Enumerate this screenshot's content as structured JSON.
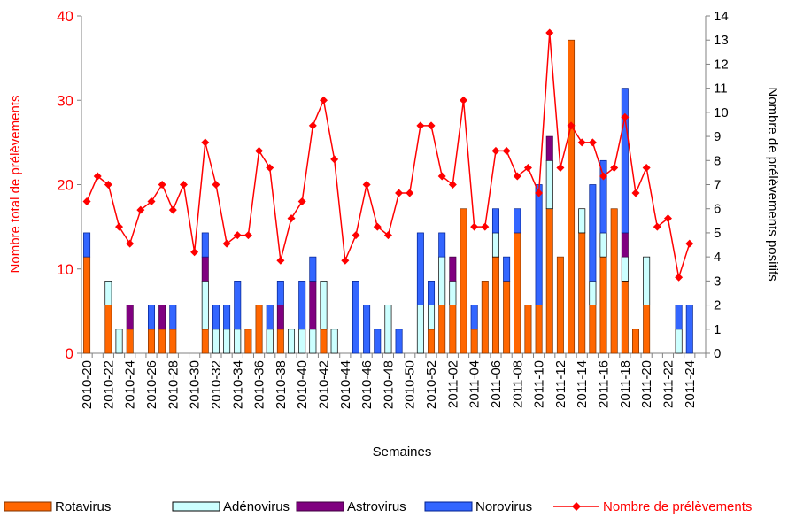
{
  "chart_data": {
    "type": "bar-line",
    "categories": [
      "2010-20",
      null,
      "2010-22",
      null,
      "2010-24",
      null,
      "2010-26",
      null,
      "2010-28",
      null,
      "2010-30",
      null,
      "2010-32",
      null,
      "2010-34",
      null,
      "2010-36",
      null,
      "2010-38",
      null,
      "2010-40",
      null,
      "2010-42",
      null,
      "2010-44",
      null,
      "2010-46",
      null,
      "2010-48",
      null,
      "2010-50",
      null,
      "2010-52",
      null,
      "2011-02",
      null,
      "2011-04",
      null,
      "2011-06",
      null,
      "2011-08",
      null,
      "2011-10",
      null,
      "2011-12",
      null,
      "2011-14",
      null,
      "2011-16",
      null,
      "2011-18",
      null,
      "2011-20",
      null,
      "2011-22",
      null,
      "2011-24",
      null
    ],
    "series": [
      {
        "name": "Rotavirus",
        "color": "#ff6600",
        "axis": "y2",
        "values": [
          4,
          0,
          2,
          0,
          1,
          0,
          1,
          1,
          1,
          0,
          0,
          1,
          0,
          0,
          0,
          1,
          2,
          0,
          1,
          0,
          0,
          0,
          1,
          0,
          0,
          0,
          0,
          0,
          0,
          0,
          0,
          0,
          1,
          2,
          2,
          6,
          1,
          3,
          4,
          3,
          5,
          2,
          2,
          6,
          4,
          13,
          5,
          2,
          4,
          6,
          3,
          1,
          2,
          0,
          0,
          0,
          0,
          0
        ]
      },
      {
        "name": "Adénovirus",
        "color": "#ccffff",
        "axis": "y2",
        "values": [
          0,
          0,
          1,
          1,
          0,
          0,
          0,
          0,
          0,
          0,
          0,
          2,
          1,
          1,
          1,
          0,
          0,
          1,
          0,
          1,
          1,
          1,
          2,
          1,
          0,
          0,
          0,
          0,
          2,
          0,
          0,
          2,
          1,
          2,
          1,
          0,
          0,
          0,
          1,
          0,
          0,
          0,
          0,
          2,
          0,
          0,
          1,
          1,
          1,
          0,
          1,
          0,
          2,
          0,
          0,
          1,
          0,
          0
        ]
      },
      {
        "name": "Astrovirus",
        "color": "#800080",
        "axis": "y2",
        "values": [
          0,
          0,
          0,
          0,
          1,
          0,
          0,
          1,
          0,
          0,
          0,
          1,
          0,
          0,
          0,
          0,
          0,
          0,
          1,
          0,
          0,
          2,
          0,
          0,
          0,
          0,
          0,
          0,
          0,
          0,
          0,
          0,
          0,
          0,
          1,
          0,
          0,
          0,
          0,
          0,
          0,
          0,
          0,
          1,
          0,
          0,
          0,
          0,
          0,
          0,
          1,
          0,
          0,
          0,
          0,
          0,
          0,
          0
        ]
      },
      {
        "name": "Norovirus",
        "color": "#3366ff",
        "axis": "y2",
        "values": [
          1,
          0,
          0,
          0,
          0,
          0,
          1,
          0,
          1,
          0,
          0,
          1,
          1,
          1,
          2,
          0,
          0,
          1,
          1,
          0,
          2,
          1,
          0,
          0,
          0,
          3,
          2,
          1,
          0,
          1,
          0,
          3,
          1,
          1,
          0,
          0,
          1,
          0,
          1,
          1,
          1,
          0,
          5,
          0,
          0,
          0,
          0,
          4,
          3,
          0,
          6,
          0,
          0,
          0,
          0,
          1,
          2,
          0
        ]
      },
      {
        "name": "Nombre de prélèvements",
        "color": "#ff0000",
        "type": "line",
        "values": [
          18,
          21,
          20,
          15,
          13,
          17,
          18,
          20,
          17,
          20,
          12,
          25,
          20,
          13,
          14,
          14,
          24,
          22,
          11,
          16,
          18,
          27,
          30,
          23,
          11,
          14,
          20,
          15,
          14,
          19,
          19,
          27,
          27,
          21,
          20,
          30,
          15,
          15,
          24,
          24,
          21,
          22,
          19,
          38,
          22,
          27,
          25,
          25,
          21,
          22,
          28,
          19,
          22,
          15,
          16,
          9,
          13,
          null
        ]
      }
    ],
    "xlabel": "Semaines",
    "ylabel": "Nombre total de prélèvements",
    "y2label": "Nombre de prélèvements positifs",
    "ylim": [
      0,
      40
    ],
    "yticks": [
      0,
      10,
      20,
      30,
      40
    ],
    "y2lim": [
      0,
      14
    ],
    "y2ticks": [
      0,
      1,
      2,
      3,
      4,
      5,
      6,
      7,
      8,
      9,
      10,
      11,
      12,
      13,
      14
    ],
    "legend": "bottom"
  }
}
